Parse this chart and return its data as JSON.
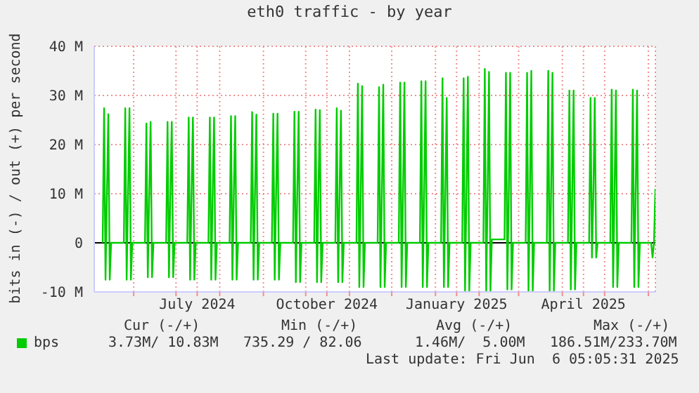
{
  "chart_data": {
    "type": "line",
    "title": "eth0 traffic - by year",
    "ylabel": "bits in (-) / out (+) per second",
    "x": [
      "2024-05-10",
      "2024-05-11",
      "2024-05-12",
      "2024-05-13",
      "2024-05-14",
      "2024-05-15",
      "2024-05-16",
      "2024-05-25",
      "2024-05-26",
      "2024-05-27",
      "2024-05-28",
      "2024-05-29",
      "2024-05-30",
      "2024-05-31",
      "2024-06-09",
      "2024-06-10",
      "2024-06-11",
      "2024-06-12",
      "2024-06-13",
      "2024-06-14",
      "2024-06-15",
      "2024-06-24",
      "2024-06-25",
      "2024-06-26",
      "2024-06-27",
      "2024-06-28",
      "2024-06-29",
      "2024-06-30",
      "2024-07-09",
      "2024-07-10",
      "2024-07-11",
      "2024-07-12",
      "2024-07-13",
      "2024-07-14",
      "2024-07-15",
      "2024-07-24",
      "2024-07-25",
      "2024-07-26",
      "2024-07-27",
      "2024-07-28",
      "2024-07-29",
      "2024-07-30",
      "2024-08-08",
      "2024-08-09",
      "2024-08-10",
      "2024-08-11",
      "2024-08-12",
      "2024-08-13",
      "2024-08-14",
      "2024-08-23",
      "2024-08-24",
      "2024-08-25",
      "2024-08-26",
      "2024-08-27",
      "2024-08-28",
      "2024-08-29",
      "2024-09-07",
      "2024-09-08",
      "2024-09-09",
      "2024-09-10",
      "2024-09-11",
      "2024-09-12",
      "2024-09-13",
      "2024-09-22",
      "2024-09-23",
      "2024-09-24",
      "2024-09-25",
      "2024-09-26",
      "2024-09-27",
      "2024-09-28",
      "2024-10-07",
      "2024-10-08",
      "2024-10-09",
      "2024-10-10",
      "2024-10-11",
      "2024-10-12",
      "2024-10-13",
      "2024-10-22",
      "2024-10-23",
      "2024-10-24",
      "2024-10-25",
      "2024-10-26",
      "2024-10-27",
      "2024-10-28",
      "2024-11-06",
      "2024-11-07",
      "2024-11-08",
      "2024-11-09",
      "2024-11-10",
      "2024-11-11",
      "2024-11-12",
      "2024-11-21",
      "2024-11-22",
      "2024-11-23",
      "2024-11-24",
      "2024-11-25",
      "2024-11-26",
      "2024-11-27",
      "2024-12-06",
      "2024-12-07",
      "2024-12-08",
      "2024-12-09",
      "2024-12-10",
      "2024-12-11",
      "2024-12-12",
      "2024-12-21",
      "2024-12-22",
      "2024-12-23",
      "2024-12-24",
      "2024-12-25",
      "2024-12-26",
      "2024-12-27",
      "2025-01-05",
      "2025-01-06",
      "2025-01-07",
      "2025-01-08",
      "2025-01-09",
      "2025-01-10",
      "2025-01-11",
      "2025-01-20",
      "2025-01-21",
      "2025-01-22",
      "2025-01-23",
      "2025-01-24",
      "2025-01-25",
      "2025-01-26",
      "2025-02-04",
      "2025-02-05",
      "2025-02-06",
      "2025-02-07",
      "2025-02-08",
      "2025-02-09",
      "2025-02-10",
      "2025-02-19",
      "2025-02-20",
      "2025-02-21",
      "2025-02-22",
      "2025-02-23",
      "2025-02-24",
      "2025-02-25",
      "2025-03-06",
      "2025-03-07",
      "2025-03-08",
      "2025-03-09",
      "2025-03-10",
      "2025-03-11",
      "2025-03-12",
      "2025-03-21",
      "2025-03-22",
      "2025-03-23",
      "2025-03-24",
      "2025-03-25",
      "2025-03-26",
      "2025-03-27",
      "2025-04-05",
      "2025-04-06",
      "2025-04-07",
      "2025-04-08",
      "2025-04-09",
      "2025-04-10",
      "2025-04-11",
      "2025-04-20",
      "2025-04-21",
      "2025-04-22",
      "2025-04-23",
      "2025-04-24",
      "2025-04-25",
      "2025-04-26",
      "2025-05-05",
      "2025-05-06",
      "2025-05-07",
      "2025-05-08",
      "2025-05-09",
      "2025-05-10",
      "2025-05-11",
      "2025-05-20",
      "2025-05-21",
      "2025-05-22",
      "2025-05-23",
      "2025-05-24",
      "2025-05-25",
      "2025-05-26",
      "2025-06-03",
      "2025-06-04",
      "2025-06-05",
      "2025-06-06"
    ],
    "series": [
      {
        "name": "bps",
        "color": "#00cc00",
        "values": [
          0,
          27.4,
          -7.5,
          10,
          26.2,
          -7.5,
          0,
          0,
          27.4,
          -7.5,
          10,
          27.4,
          -7.5,
          0,
          0,
          24.3,
          -7,
          10,
          24.6,
          -7,
          0,
          0,
          24.6,
          -7,
          10,
          24.6,
          -7,
          0,
          0,
          25.5,
          -7.5,
          10,
          25.5,
          -7.5,
          0,
          0,
          25.5,
          -7.5,
          10,
          25.5,
          -7.5,
          0,
          0,
          25.8,
          -7.5,
          10,
          25.8,
          -7.5,
          0,
          0,
          26.6,
          -7.5,
          10,
          26.1,
          -7.5,
          0,
          0,
          26.3,
          -7.5,
          10,
          26.3,
          -7.5,
          0,
          0,
          26.7,
          -8,
          10,
          26.7,
          -8,
          0,
          0,
          27.1,
          -8,
          10,
          27,
          -8,
          0,
          0,
          27.4,
          -8,
          10,
          26.9,
          -8,
          0,
          0,
          32.4,
          -9,
          10,
          31.9,
          -9,
          0,
          0,
          31.7,
          -9,
          10,
          32.2,
          -9,
          0,
          0,
          32.6,
          -9,
          10,
          32.6,
          -9,
          0,
          0,
          32.9,
          -9,
          10,
          32.9,
          -9,
          0,
          0,
          33.5,
          -9,
          10,
          29.5,
          -9,
          0,
          0,
          33.5,
          -9.8,
          10,
          33.8,
          -9.8,
          0,
          0,
          35.4,
          -9.8,
          10,
          34.8,
          -9.8,
          0.7,
          0.7,
          34.6,
          -9.5,
          10,
          34.6,
          -9.5,
          0,
          0,
          34.6,
          -9.8,
          10,
          35,
          -9.8,
          0,
          0,
          35,
          -9.8,
          10,
          34.6,
          -9.8,
          0,
          0,
          31,
          -9.5,
          10,
          31,
          -9.5,
          0,
          0,
          29.5,
          -3,
          10,
          29.5,
          -3,
          0,
          0,
          31.2,
          -9,
          10,
          31,
          -9,
          0,
          0,
          31.2,
          -9,
          10,
          31,
          -9,
          0,
          0,
          -3,
          0,
          11
        ]
      }
    ],
    "xlim": [
      "2024-05-04",
      "2025-06-06"
    ],
    "xticks": [
      {
        "value": "2024-06-01",
        "label": null
      },
      {
        "value": "2024-07-01",
        "label": null
      },
      {
        "value": "2024-07-16",
        "label": "July 2024"
      },
      {
        "value": "2024-08-01",
        "label": null
      },
      {
        "value": "2024-09-01",
        "label": null
      },
      {
        "value": "2024-10-01",
        "label": null
      },
      {
        "value": "2024-10-16",
        "label": "October 2024"
      },
      {
        "value": "2024-11-01",
        "label": null
      },
      {
        "value": "2024-12-01",
        "label": null
      },
      {
        "value": "2025-01-01",
        "label": null
      },
      {
        "value": "2025-01-16",
        "label": "January 2025"
      },
      {
        "value": "2025-02-01",
        "label": null
      },
      {
        "value": "2025-03-01",
        "label": null
      },
      {
        "value": "2025-04-01",
        "label": null
      },
      {
        "value": "2025-04-16",
        "label": "April 2025"
      },
      {
        "value": "2025-05-01",
        "label": null
      },
      {
        "value": "2025-06-01",
        "label": null
      }
    ],
    "ylim": [
      -10,
      40
    ],
    "yticks": [
      {
        "value": -10,
        "label": "-10 M"
      },
      0,
      {
        "value": 10,
        "label": "10 M"
      },
      {
        "value": 20,
        "label": "20 M"
      },
      {
        "value": 30,
        "label": "30 M"
      },
      {
        "value": 40,
        "label": "40 M"
      }
    ],
    "grid": true,
    "legend": "bottom",
    "marker": "none",
    "line_style": "solid",
    "ref_lines": [
      {
        "axis": "y",
        "value": 0,
        "color": "#000000"
      }
    ],
    "annotations": [
      "Cur (-/+)",
      "Min (-/+)",
      "Avg (-/+)",
      "Max (-/+)",
      "3.73M/ 10.83M",
      "735.29 / 82.06",
      "1.46M/  5.00M",
      "186.51M/233.70M",
      "Last update: Fri Jun  6 05:05:31 2025"
    ]
  }
}
